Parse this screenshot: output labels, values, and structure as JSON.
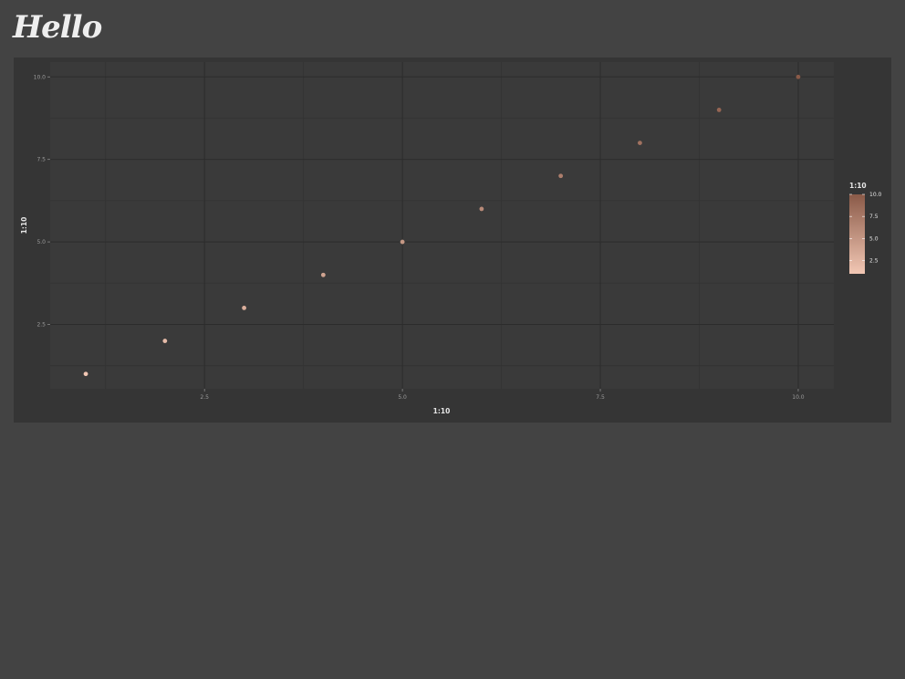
{
  "header": {
    "title": "Hello"
  },
  "chart_data": {
    "type": "scatter",
    "x": [
      1,
      2,
      3,
      4,
      5,
      6,
      7,
      8,
      9,
      10
    ],
    "y": [
      1,
      2,
      3,
      4,
      5,
      6,
      7,
      8,
      9,
      10
    ],
    "color_values": [
      1,
      2,
      3,
      4,
      5,
      6,
      7,
      8,
      9,
      10
    ],
    "xlabel": "1:10",
    "ylabel": "1:10",
    "xlim": [
      0.55,
      10.45
    ],
    "ylim": [
      0.55,
      10.45
    ],
    "x_ticks": [
      2.5,
      5.0,
      7.5,
      10.0
    ],
    "x_tick_labels": [
      "2.5",
      "5.0",
      "7.5",
      "10.0"
    ],
    "y_ticks": [
      2.5,
      5.0,
      7.5,
      10.0
    ],
    "y_tick_labels": [
      "2.5",
      "5.0",
      "7.5",
      "10.0"
    ],
    "grid": true,
    "legend": {
      "title": "1:10",
      "type": "colorbar",
      "placement": "right",
      "range": [
        1,
        10
      ],
      "ticks": [
        2.5,
        5.0,
        7.5,
        10.0
      ],
      "tick_labels": [
        "2.5",
        "5.0",
        "7.5",
        "10.0"
      ],
      "color_low": "#f2c7b4",
      "color_high": "#8a5a48"
    },
    "colors": {
      "panel_background": "#3a3a3a",
      "card_background": "#353535",
      "page_background": "#434343",
      "grid_major": "#2c2c2c",
      "grid_minor": "#333333"
    }
  }
}
